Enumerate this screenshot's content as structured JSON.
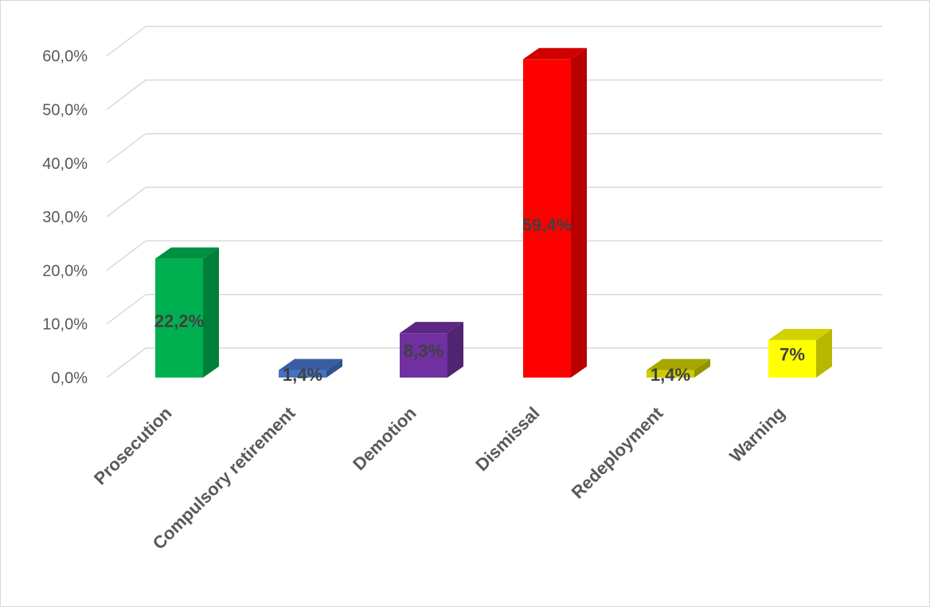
{
  "chart_data": {
    "type": "bar",
    "style": "3d-column",
    "categories": [
      "Prosecution",
      "Compulsory retirement",
      "Demotion",
      "Dismissal",
      "Redeployment",
      "Warning"
    ],
    "values": [
      22.2,
      1.4,
      8.3,
      59.4,
      1.4,
      7
    ],
    "data_labels": [
      "22,2%",
      "1,4%",
      "8,3%",
      "59,4%",
      "1,4%",
      "7%"
    ],
    "colors": [
      "#00b050",
      "#4472c4",
      "#7030a0",
      "#ff0000",
      "#cccc00",
      "#ffff00"
    ],
    "y_ticks": [
      "0,0%",
      "10,0%",
      "20,0%",
      "30,0%",
      "40,0%",
      "50,0%",
      "60,0%"
    ],
    "ylim": [
      0,
      60
    ],
    "grid": true,
    "legend": "none",
    "title": "",
    "xlabel": "",
    "ylabel": ""
  }
}
